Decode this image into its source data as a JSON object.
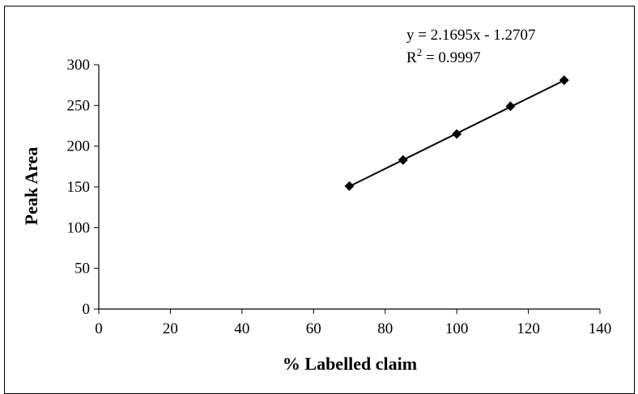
{
  "chart_data": {
    "type": "scatter",
    "xlabel": "% Labelled claim",
    "ylabel": "Peak Area",
    "xlim": [
      0,
      140
    ],
    "ylim": [
      0,
      300
    ],
    "x_ticks": [
      0,
      20,
      40,
      60,
      80,
      100,
      120,
      140
    ],
    "y_ticks": [
      0,
      50,
      100,
      150,
      200,
      250,
      300
    ],
    "grid": false,
    "legend": "none",
    "series": [
      {
        "x": [
          70,
          85,
          100,
          115,
          130
        ],
        "y": [
          151,
          183,
          215,
          249,
          281
        ],
        "marker": "diamond",
        "color": "#000000"
      }
    ],
    "trendline": {
      "slope": 2.1695,
      "intercept": -1.2707,
      "x_range": [
        70,
        130
      ],
      "color": "#000000"
    },
    "annotations": {
      "equation": "y = 2.1695x - 1.2707",
      "r2_prefix": "R",
      "r2_exponent": "2",
      "r2_value": " = 0.9997"
    }
  }
}
